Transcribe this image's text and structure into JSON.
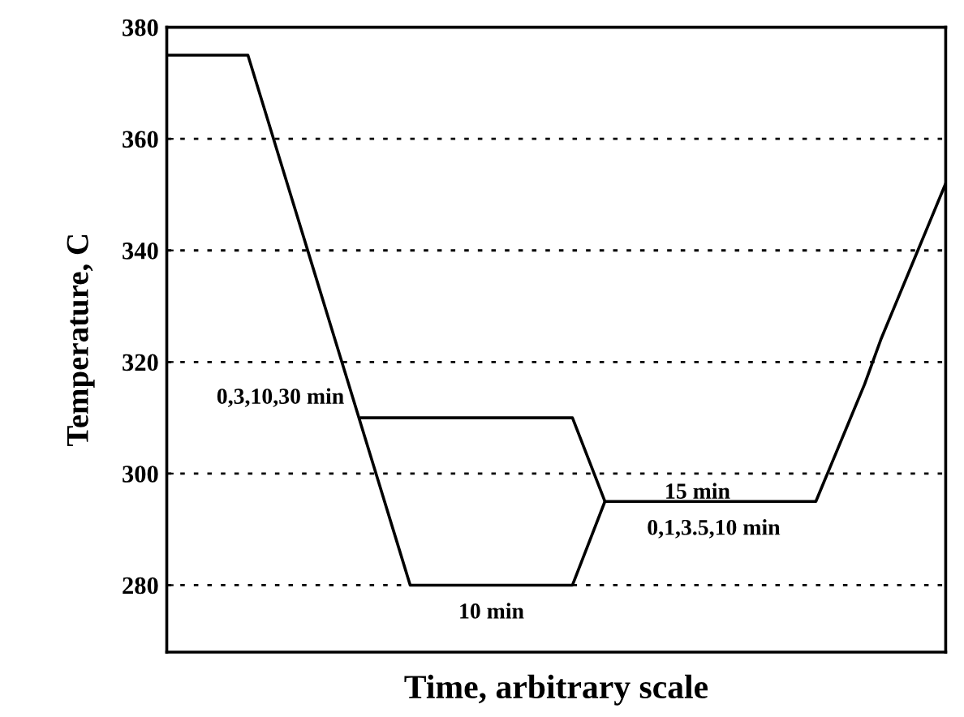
{
  "chart_data": {
    "type": "line",
    "xlabel": "Time, arbitrary scale",
    "ylabel": "Temperature, C",
    "categories": [
      null,
      null,
      null,
      null,
      null,
      null,
      null,
      null,
      null,
      null,
      null,
      null,
      null,
      null,
      null,
      null,
      null,
      null,
      null,
      null,
      null,
      null,
      null,
      null,
      null,
      null,
      null,
      null,
      null,
      null,
      null,
      null,
      null,
      null,
      null,
      null,
      null,
      null,
      null,
      null,
      null,
      null,
      null,
      null,
      null,
      null,
      null,
      null,
      null
    ],
    "series": [
      {
        "color": "#000000",
        "values": [
          375,
          375,
          375,
          375,
          375,
          375,
          365.5,
          356,
          346.5,
          337,
          327.5,
          318,
          308.5,
          299,
          289.5,
          280,
          280,
          280,
          280,
          280,
          280,
          280,
          280,
          280,
          280,
          280,
          287.5,
          295,
          295,
          295,
          295,
          295,
          295,
          295,
          295,
          295,
          295,
          295,
          295,
          295,
          295,
          302,
          309,
          316,
          324,
          331,
          338,
          345,
          352
        ]
      },
      {
        "color": "#000000",
        "values": [
          null,
          null,
          null,
          null,
          null,
          null,
          null,
          null,
          null,
          null,
          null,
          null,
          310,
          310,
          310,
          310,
          310,
          310,
          310,
          310,
          310,
          310,
          310,
          310,
          310,
          310,
          302.5,
          295,
          null,
          null,
          null,
          null,
          null,
          null,
          null,
          null,
          null,
          null,
          null,
          null,
          null,
          null,
          null,
          null,
          null,
          null,
          null,
          null,
          null
        ]
      }
    ],
    "annotations": [
      "0,3,10,30 min",
      "10 min",
      "15 min",
      "0,1,3.5,10 min"
    ],
    "ylim": [
      268,
      380
    ],
    "yticks": [
      280,
      300,
      320,
      340,
      360,
      380
    ],
    "grid": "y",
    "tick_labels": "y",
    "marker": "none",
    "line_style": "solid",
    "legend": false
  }
}
